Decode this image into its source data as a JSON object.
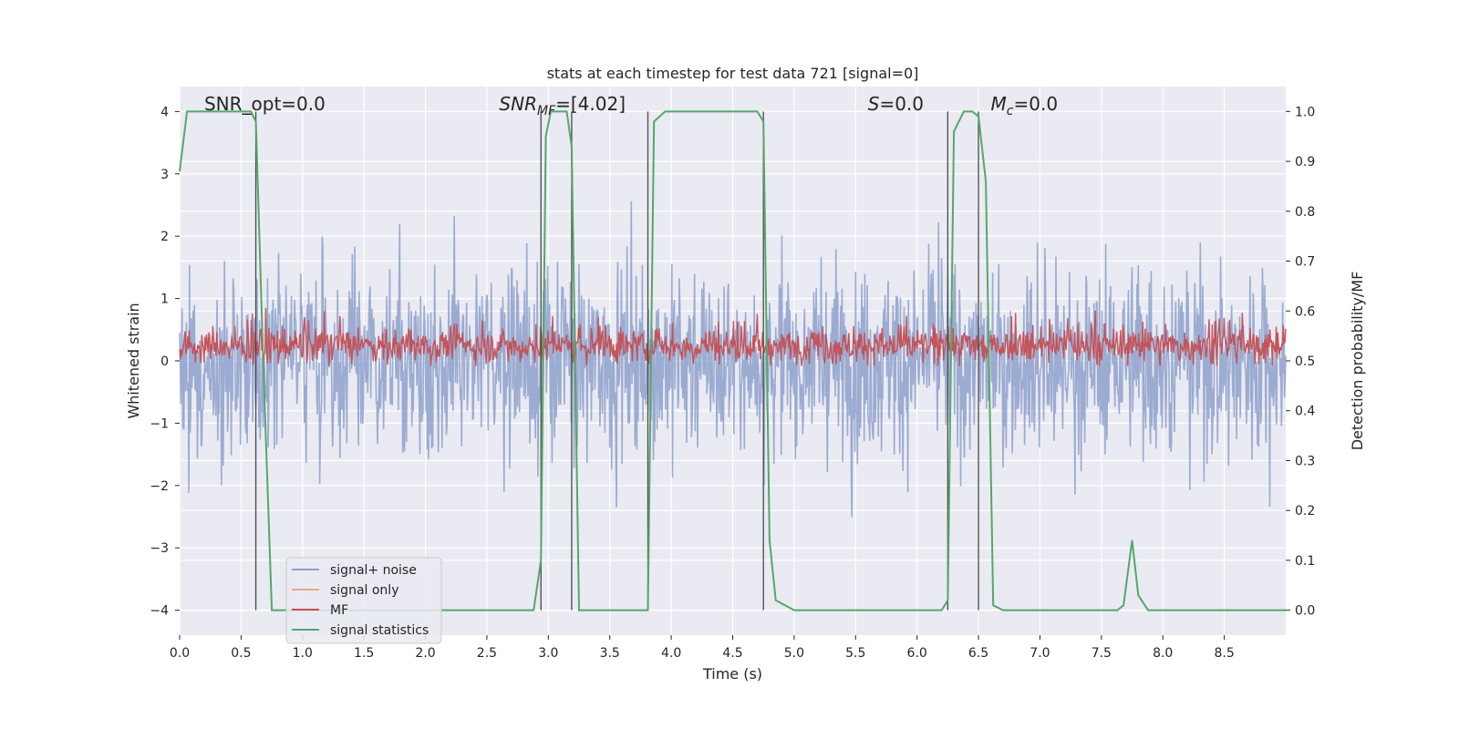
{
  "chart_data": {
    "type": "line",
    "title": "stats at each timestep for test data 721 [signal=0]",
    "xlabel": "Time (s)",
    "ylabel": "Whitened strain",
    "ylabel_right": "Detection probability/MF",
    "xlim": [
      0.0,
      9.0
    ],
    "ylim": [
      -4.4,
      4.4
    ],
    "ylim_right": [
      -0.05,
      1.05
    ],
    "x_ticks": [
      "0.0",
      "0.5",
      "1.0",
      "1.5",
      "2.0",
      "2.5",
      "3.0",
      "3.5",
      "4.0",
      "4.5",
      "5.0",
      "5.5",
      "6.0",
      "6.5",
      "7.0",
      "7.5",
      "8.0",
      "8.5"
    ],
    "y_ticks": [
      "4",
      "3",
      "2",
      "1",
      "0",
      "−1",
      "−2",
      "−3",
      "−4"
    ],
    "y_ticks_right": [
      "1.0",
      "0.9",
      "0.8",
      "0.7",
      "0.6",
      "0.5",
      "0.4",
      "0.3",
      "0.2",
      "0.1",
      "0.0"
    ],
    "grid": true,
    "legend_position": "lower-left",
    "annotations": [
      {
        "text": "SNR_opt=0.0",
        "x": 0.2
      },
      {
        "text": "SNR_MF=[4.02]",
        "x": 2.6
      },
      {
        "text": "S=0.0",
        "x": 5.6
      },
      {
        "text": "M_c=0.0",
        "x": 6.6
      }
    ],
    "vertical_markers_x": [
      0.62,
      2.94,
      3.19,
      3.81,
      4.75,
      6.25,
      6.5
    ],
    "series": [
      {
        "name": "signal+ noise",
        "color": "#8da0cb",
        "style": "dense noise band, roughly between -2.5 and 2.5 with spikes to about ±3.5"
      },
      {
        "name": "signal only",
        "color": "#e8a98a",
        "values": []
      },
      {
        "name": "MF",
        "color": "#c44e52",
        "style": "noisy band on right axis, centered about 0.53 (range approx 0.49–0.62)"
      },
      {
        "name": "signal statistics",
        "color": "#55a868",
        "axis": "right",
        "x": [
          0.0,
          0.06,
          0.58,
          0.62,
          0.68,
          0.75,
          0.85,
          2.0,
          2.88,
          2.94,
          2.98,
          3.02,
          3.15,
          3.19,
          3.25,
          3.3,
          3.81,
          3.86,
          3.95,
          4.2,
          4.7,
          4.75,
          4.8,
          4.85,
          5.0,
          6.2,
          6.25,
          6.3,
          6.38,
          6.45,
          6.5,
          6.56,
          6.62,
          6.7,
          7.5,
          7.63,
          7.68,
          7.75,
          7.8,
          7.88,
          8.0,
          9.0
        ],
        "y": [
          0.88,
          1.0,
          1.0,
          0.98,
          0.5,
          0.0,
          0.0,
          0.0,
          0.0,
          0.1,
          0.95,
          1.0,
          1.0,
          0.93,
          0.0,
          0.0,
          0.0,
          0.98,
          1.0,
          1.0,
          1.0,
          0.98,
          0.14,
          0.02,
          0.0,
          0.0,
          0.02,
          0.96,
          1.0,
          1.0,
          0.99,
          0.86,
          0.01,
          0.0,
          0.0,
          0.0,
          0.01,
          0.14,
          0.03,
          0.0,
          0.0,
          0.0
        ]
      }
    ]
  }
}
